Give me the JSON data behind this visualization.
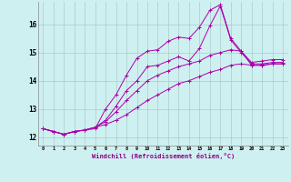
{
  "xlabel": "Windchill (Refroidissement éolien,°C)",
  "background_color": "#cff0f0",
  "grid_color": "#aacccc",
  "line_color": "#aa00aa",
  "xlim": [
    -0.5,
    23.5
  ],
  "ylim": [
    11.7,
    16.8
  ],
  "yticks": [
    12,
    13,
    14,
    15,
    16
  ],
  "xticks": [
    0,
    1,
    2,
    3,
    4,
    5,
    6,
    7,
    8,
    9,
    10,
    11,
    12,
    13,
    14,
    15,
    16,
    17,
    18,
    19,
    20,
    21,
    22,
    23
  ],
  "series": [
    [
      12.3,
      12.2,
      12.1,
      12.2,
      12.25,
      12.3,
      13.0,
      13.5,
      14.2,
      14.8,
      15.05,
      15.1,
      15.4,
      15.55,
      15.5,
      15.9,
      16.5,
      16.7,
      15.5,
      15.05,
      14.65,
      14.7,
      14.75,
      14.75
    ],
    [
      12.3,
      12.2,
      12.1,
      12.2,
      12.25,
      12.35,
      12.6,
      13.1,
      13.65,
      14.0,
      14.5,
      14.55,
      14.7,
      14.85,
      14.7,
      15.15,
      15.95,
      16.65,
      15.45,
      15.0,
      14.6,
      14.6,
      14.65,
      14.65
    ],
    [
      12.3,
      12.2,
      12.1,
      12.2,
      12.25,
      12.35,
      12.55,
      12.9,
      13.3,
      13.65,
      14.0,
      14.2,
      14.35,
      14.5,
      14.6,
      14.7,
      14.9,
      15.0,
      15.1,
      15.05,
      14.55,
      14.55,
      14.6,
      14.6
    ],
    [
      12.3,
      12.2,
      12.1,
      12.2,
      12.25,
      12.35,
      12.45,
      12.6,
      12.8,
      13.05,
      13.3,
      13.5,
      13.7,
      13.9,
      14.0,
      14.15,
      14.3,
      14.4,
      14.55,
      14.6,
      14.55,
      14.55,
      14.6,
      14.6
    ]
  ]
}
